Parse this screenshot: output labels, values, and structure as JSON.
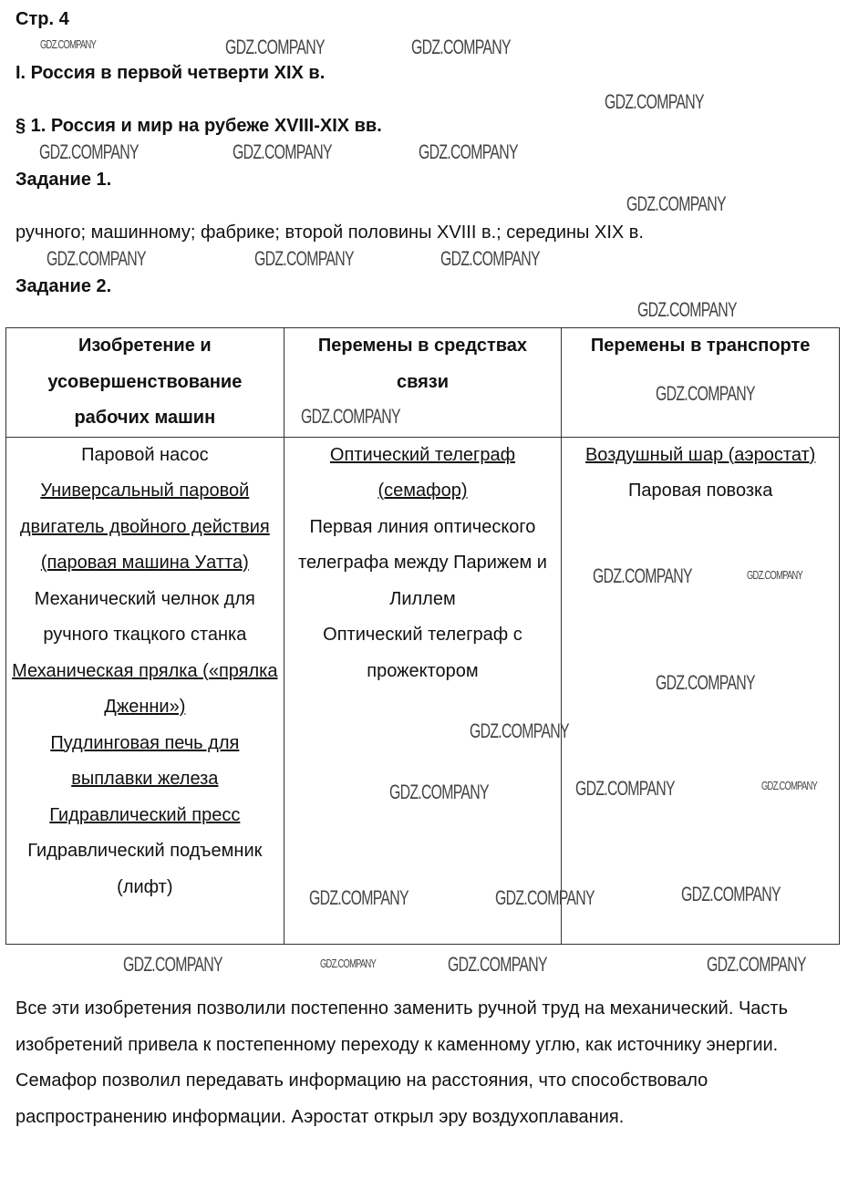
{
  "page_label": "Стр. 4",
  "chapter": "I. Россия в первой четверти XIX в.",
  "section": "§ 1. Россия и мир на рубеже XVIII-XIX вв.",
  "task1": {
    "title": "Задание 1.",
    "answer": "ручного; машинному; фабрике; второй половины XVIII в.; середины XIX в."
  },
  "task2": {
    "title": "Задание 2.",
    "headers": [
      "Изобретение и усовершенствование рабочих машин",
      "Перемены в средствах связи",
      "Перемены в транспорте"
    ],
    "columns": [
      [
        {
          "text": "Паровой насос",
          "underline": false
        },
        {
          "text": "Универсальный паровой двигатель двойного действия (паровая машина Уатта)",
          "underline": true
        },
        {
          "text": "Механический челнок для ручного ткацкого станка",
          "underline": false
        },
        {
          "text": "Механическая прялка («прялка Дженни»)",
          "underline": true
        },
        {
          "text": "Пудлинговая печь для выплавки железа",
          "underline": true
        },
        {
          "text": "Гидравлический пресс",
          "underline": true
        },
        {
          "text": "Гидравлический подъемник (лифт)",
          "underline": false
        }
      ],
      [
        {
          "text": "Оптический телеграф (семафор)",
          "underline": true
        },
        {
          "text": "Первая линия оптического телеграфа между Парижем и Лиллем",
          "underline": false
        },
        {
          "text": "Оптический телеграф с прожектором",
          "underline": false
        }
      ],
      [
        {
          "text": "Воздушный шар (аэростат)",
          "underline": true
        },
        {
          "text": "Паровая повозка",
          "underline": false
        }
      ]
    ]
  },
  "conclusion": "Все эти изобретения позволили постепенно заменить ручной труд на механический. Часть изобретений привела к постепенному переходу к каменному углю, как источнику энергии. Семафор позволил передавать информацию на расстояния, что способствовало распространению информации. Аэростат открыл эру воздухоплавания.",
  "watermark": "GDZ.COMPANY"
}
